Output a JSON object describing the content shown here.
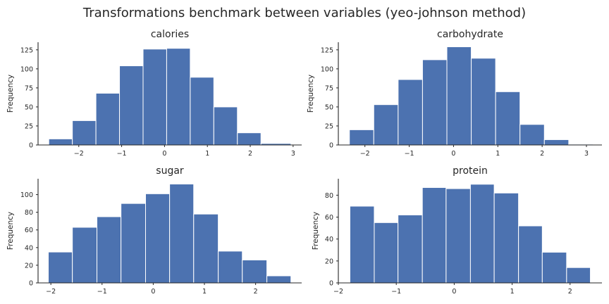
{
  "figure": {
    "title": "Transformations benchmark between variables (yeo-johnson method)"
  },
  "chart_data": [
    {
      "type": "histogram",
      "title": "calories",
      "ylabel": "Frequency",
      "xlabel": "",
      "bin_edges": [
        -2.7,
        -2.15,
        -1.6,
        -1.05,
        -0.5,
        0.05,
        0.6,
        1.15,
        1.7,
        2.25,
        2.95
      ],
      "values": [
        8,
        32,
        68,
        104,
        126,
        127,
        89,
        50,
        16,
        2
      ],
      "xlim": [
        -2.95,
        3.2
      ],
      "ylim": [
        0,
        135
      ],
      "xticks": [
        -2,
        -1,
        0,
        1,
        2,
        3
      ],
      "xtick_labels": [
        "−2",
        "−1",
        "0",
        "1",
        "2",
        "3"
      ],
      "yticks": [
        0,
        25,
        50,
        75,
        100,
        125
      ],
      "ytick_labels": [
        "0",
        "25",
        "50",
        "75",
        "100",
        "125"
      ]
    },
    {
      "type": "histogram",
      "title": "carbohydrate",
      "ylabel": "Frequency",
      "xlabel": "",
      "bin_edges": [
        -2.35,
        -1.8,
        -1.25,
        -0.7,
        -0.15,
        0.4,
        0.95,
        1.5,
        2.05,
        2.6,
        3.15
      ],
      "values": [
        20,
        53,
        86,
        112,
        129,
        114,
        70,
        27,
        7,
        1
      ],
      "xlim": [
        -2.6,
        3.35
      ],
      "ylim": [
        0,
        135
      ],
      "xticks": [
        -2,
        -1,
        0,
        1,
        2,
        3
      ],
      "xtick_labels": [
        "−2",
        "−1",
        "0",
        "1",
        "2",
        "3"
      ],
      "yticks": [
        0,
        25,
        50,
        75,
        100,
        125
      ],
      "ytick_labels": [
        "0",
        "25",
        "50",
        "75",
        "100",
        "125"
      ]
    },
    {
      "type": "histogram",
      "title": "sugar",
      "ylabel": "Frequency",
      "xlabel": "",
      "bin_edges": [
        -2.05,
        -1.58,
        -1.1,
        -0.63,
        -0.15,
        0.32,
        0.79,
        1.27,
        1.74,
        2.22,
        2.69
      ],
      "values": [
        35,
        63,
        75,
        90,
        101,
        112,
        78,
        36,
        26,
        8
      ],
      "xlim": [
        -2.25,
        2.9
      ],
      "ylim": [
        0,
        118
      ],
      "xticks": [
        -2,
        -1,
        0,
        1,
        2
      ],
      "xtick_labels": [
        "−2",
        "−1",
        "0",
        "1",
        "2"
      ],
      "yticks": [
        0,
        20,
        40,
        60,
        80,
        100
      ],
      "ytick_labels": [
        "0",
        "20",
        "40",
        "60",
        "80",
        "100"
      ]
    },
    {
      "type": "histogram",
      "title": "protein",
      "ylabel": "Frequency",
      "xlabel": "",
      "bin_edges": [
        -1.8,
        -1.38,
        -0.97,
        -0.55,
        -0.14,
        0.28,
        0.69,
        1.11,
        1.52,
        1.94,
        2.35
      ],
      "values": [
        70,
        55,
        62,
        87,
        86,
        90,
        82,
        52,
        28,
        14
      ],
      "xlim": [
        -2.0,
        2.55
      ],
      "ylim": [
        0,
        95
      ],
      "xticks": [
        -2,
        -1,
        0,
        1,
        2
      ],
      "xtick_labels": [
        "−2",
        "−1",
        "0",
        "1",
        "2"
      ],
      "yticks": [
        0,
        20,
        40,
        60,
        80
      ],
      "ytick_labels": [
        "0",
        "20",
        "40",
        "60",
        "80"
      ]
    }
  ],
  "colors": {
    "bar": "#4c72b0",
    "text": "#262626"
  }
}
